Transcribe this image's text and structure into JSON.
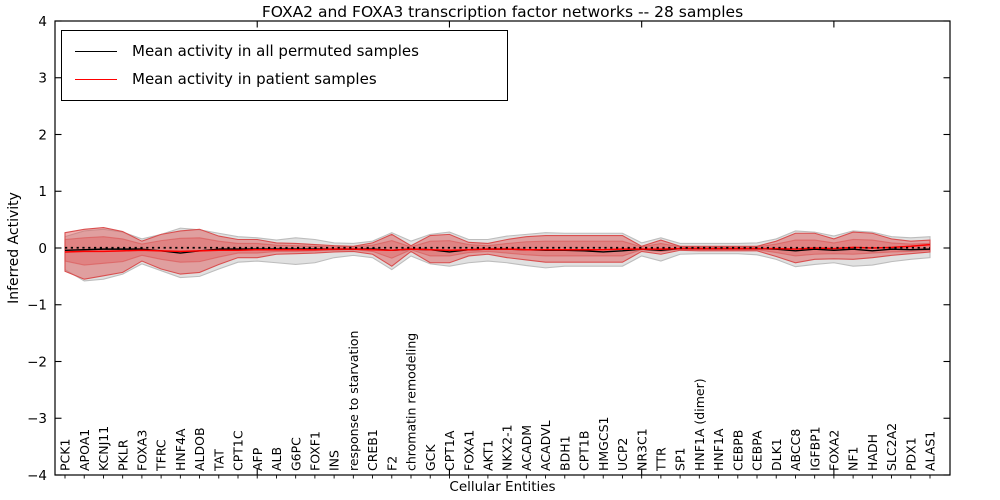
{
  "chart_data": {
    "type": "line",
    "title": "FOXA2 and FOXA3 transcription factor networks -- 28 samples",
    "xlabel": "Cellular Entities",
    "ylabel": "Inferred Activity",
    "ylim": [
      -4,
      4
    ],
    "ytick_labels": [
      "4",
      "3",
      "2",
      "1",
      "0",
      "−1",
      "−2",
      "−3",
      "−4"
    ],
    "ytick_values": [
      4,
      3,
      2,
      1,
      0,
      -1,
      -2,
      -3,
      -4
    ],
    "xtick_major_indices": [
      10,
      20,
      30,
      40
    ],
    "grid": false,
    "legend_position": "upper left",
    "legend": [
      {
        "label": "Mean activity in all permuted samples",
        "color": "#000000"
      },
      {
        "label": "Mean activity in patient samples",
        "color": "#ff0000"
      }
    ],
    "categories": [
      "PCK1",
      "APOA1",
      "KCNJ11",
      "PKLR",
      "FOXA3",
      "TFRC",
      "HNF4A",
      "ALDOB",
      "TAT",
      "CPT1C",
      "AFP",
      "ALB",
      "G6PC",
      "FOXF1",
      "INS",
      "response to starvation",
      "CREB1",
      "F2",
      "chromatin remodeling",
      "GCK",
      "CPT1A",
      "FOXA1",
      "AKT1",
      "NKX2-1",
      "ACADM",
      "ACADVL",
      "BDH1",
      "CPT1B",
      "HMGCS1",
      "UCP2",
      "NR3C1",
      "TTR",
      "SP1",
      "HNF1A (dimer)",
      "HNF1A",
      "CEBPB",
      "CEBPA",
      "DLK1",
      "ABCC8",
      "IGFBP1",
      "FOXA2",
      "NF1",
      "HADH",
      "SLC2A2",
      "PDX1",
      "ALAS1"
    ],
    "series": [
      {
        "name": "Permuted samples envelope",
        "type": "band",
        "fill": "#e1e1e1",
        "edge": "#bdbdbd",
        "upper": [
          0.2,
          0.3,
          0.33,
          0.28,
          0.16,
          0.24,
          0.35,
          0.32,
          0.26,
          0.2,
          0.18,
          0.14,
          0.18,
          0.15,
          0.09,
          0.08,
          0.12,
          0.27,
          0.12,
          0.24,
          0.28,
          0.15,
          0.15,
          0.21,
          0.24,
          0.27,
          0.26,
          0.26,
          0.26,
          0.26,
          0.09,
          0.18,
          0.08,
          0.08,
          0.08,
          0.08,
          0.09,
          0.16,
          0.3,
          0.28,
          0.21,
          0.3,
          0.28,
          0.2,
          0.18,
          0.2
        ],
        "lower": [
          -0.38,
          -0.58,
          -0.55,
          -0.46,
          -0.28,
          -0.4,
          -0.52,
          -0.5,
          -0.37,
          -0.25,
          -0.23,
          -0.26,
          -0.29,
          -0.26,
          -0.17,
          -0.13,
          -0.17,
          -0.38,
          -0.14,
          -0.28,
          -0.32,
          -0.26,
          -0.23,
          -0.26,
          -0.31,
          -0.35,
          -0.32,
          -0.32,
          -0.32,
          -0.32,
          -0.14,
          -0.23,
          -0.11,
          -0.1,
          -0.1,
          -0.1,
          -0.12,
          -0.2,
          -0.33,
          -0.29,
          -0.26,
          -0.32,
          -0.3,
          -0.24,
          -0.2,
          -0.17
        ]
      },
      {
        "name": "Patient samples envelope",
        "type": "band",
        "fill": "rgba(224,80,80,0.45)",
        "edge": "#d94f4f",
        "upper": [
          0.27,
          0.33,
          0.36,
          0.29,
          0.12,
          0.24,
          0.3,
          0.33,
          0.21,
          0.15,
          0.15,
          0.09,
          0.08,
          0.06,
          0.04,
          0.03,
          0.09,
          0.24,
          0.04,
          0.22,
          0.24,
          0.1,
          0.08,
          0.15,
          0.2,
          0.22,
          0.22,
          0.22,
          0.22,
          0.22,
          0.03,
          0.14,
          0.03,
          0.03,
          0.03,
          0.03,
          0.03,
          0.12,
          0.26,
          0.26,
          0.16,
          0.28,
          0.26,
          0.16,
          0.12,
          0.14
        ],
        "lower": [
          -0.41,
          -0.55,
          -0.49,
          -0.43,
          -0.23,
          -0.37,
          -0.46,
          -0.43,
          -0.29,
          -0.17,
          -0.17,
          -0.11,
          -0.1,
          -0.09,
          -0.07,
          -0.06,
          -0.11,
          -0.32,
          -0.06,
          -0.26,
          -0.26,
          -0.14,
          -0.11,
          -0.17,
          -0.21,
          -0.25,
          -0.25,
          -0.25,
          -0.25,
          -0.25,
          -0.06,
          -0.11,
          -0.04,
          -0.05,
          -0.05,
          -0.05,
          -0.05,
          -0.15,
          -0.26,
          -0.2,
          -0.19,
          -0.2,
          -0.17,
          -0.13,
          -0.1,
          -0.07
        ]
      },
      {
        "name": "Patient samples inner band",
        "type": "band",
        "fill": "rgba(224,80,80,0.35)",
        "edge": "rgba(217,79,79,0.55)",
        "upper": [
          0.15,
          0.18,
          0.2,
          0.16,
          0.07,
          0.13,
          0.17,
          0.18,
          0.12,
          0.08,
          0.08,
          0.05,
          0.04,
          0.03,
          0.02,
          0.02,
          0.05,
          0.13,
          0.02,
          0.12,
          0.13,
          0.06,
          0.04,
          0.08,
          0.11,
          0.12,
          0.12,
          0.12,
          0.12,
          0.12,
          0.02,
          0.08,
          0.02,
          0.02,
          0.02,
          0.02,
          0.02,
          0.07,
          0.14,
          0.14,
          0.09,
          0.15,
          0.14,
          0.09,
          0.07,
          0.08
        ],
        "lower": [
          -0.23,
          -0.3,
          -0.27,
          -0.24,
          -0.13,
          -0.2,
          -0.25,
          -0.24,
          -0.16,
          -0.09,
          -0.09,
          -0.06,
          -0.06,
          -0.05,
          -0.04,
          -0.03,
          -0.06,
          -0.18,
          -0.03,
          -0.14,
          -0.14,
          -0.08,
          -0.06,
          -0.09,
          -0.12,
          -0.14,
          -0.14,
          -0.14,
          -0.14,
          -0.14,
          -0.03,
          -0.06,
          -0.02,
          -0.03,
          -0.03,
          -0.03,
          -0.03,
          -0.08,
          -0.14,
          -0.11,
          -0.1,
          -0.11,
          -0.09,
          -0.07,
          -0.06,
          -0.04
        ]
      },
      {
        "name": "Zero reference line",
        "type": "dotted-line",
        "color": "#000000",
        "value": 0.005
      },
      {
        "name": "Mean activity in all permuted samples",
        "type": "line",
        "color": "#000000",
        "values": [
          -0.04,
          -0.03,
          -0.02,
          -0.02,
          -0.02,
          -0.05,
          -0.09,
          -0.05,
          -0.02,
          -0.02,
          -0.02,
          -0.02,
          -0.02,
          -0.02,
          -0.02,
          -0.02,
          -0.02,
          -0.04,
          -0.02,
          -0.03,
          -0.07,
          -0.03,
          -0.02,
          -0.02,
          -0.03,
          -0.04,
          -0.04,
          -0.05,
          -0.07,
          -0.05,
          -0.02,
          -0.04,
          -0.01,
          -0.01,
          -0.01,
          -0.01,
          -0.01,
          -0.02,
          -0.05,
          -0.02,
          -0.04,
          -0.02,
          -0.05,
          -0.02,
          -0.03,
          -0.02
        ]
      },
      {
        "name": "Mean activity in patient samples",
        "type": "line",
        "color": "#ff0000",
        "values": [
          -0.07,
          -0.06,
          -0.06,
          -0.05,
          -0.04,
          -0.05,
          -0.06,
          -0.05,
          -0.04,
          -0.04,
          -0.03,
          -0.03,
          -0.03,
          -0.03,
          -0.02,
          -0.02,
          -0.03,
          -0.04,
          -0.02,
          -0.03,
          -0.04,
          -0.03,
          -0.02,
          -0.02,
          -0.03,
          -0.03,
          -0.03,
          -0.03,
          -0.03,
          -0.02,
          -0.02,
          -0.02,
          -0.01,
          -0.01,
          -0.01,
          -0.01,
          -0.01,
          -0.01,
          -0.02,
          0.0,
          -0.01,
          0.01,
          0.0,
          0.01,
          0.03,
          0.06
        ]
      }
    ]
  }
}
